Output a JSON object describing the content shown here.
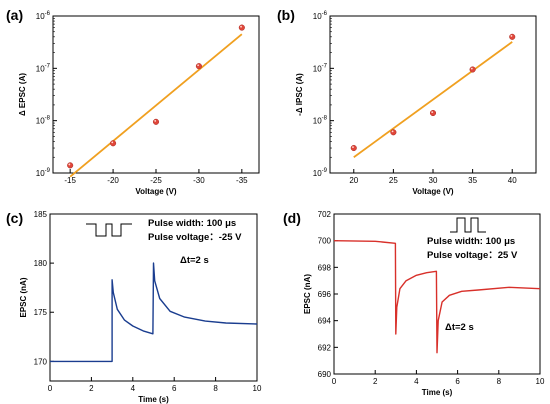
{
  "chart_data": [
    {
      "panel": "(a)",
      "type": "scatter",
      "xlabel": "Voltage (V)",
      "ylabel": "Δ EPSC (A)",
      "y_scale": "log",
      "xlim": [
        -13,
        -37
      ],
      "ylim": [
        1e-09,
        1e-06
      ],
      "x_ticks": [
        -15,
        -20,
        -25,
        -30,
        -35
      ],
      "x_tick_labels": [
        "-15",
        "-20",
        "-25",
        "-30",
        "-35"
      ],
      "y_ticks": [
        1e-09,
        1e-08,
        1e-07,
        1e-06
      ],
      "y_tick_labels": [
        "10-9",
        "10-8",
        "10-7",
        "10-6"
      ],
      "x": [
        -15,
        -20,
        -25,
        -30,
        -35
      ],
      "y": [
        1.4e-09,
        3.7e-09,
        9.5e-09,
        1.1e-07,
        6e-07
      ],
      "fit_line": {
        "x": [
          -15,
          -35
        ],
        "y": [
          8.5e-10,
          4.5e-07
        ]
      },
      "marker_color": "#e0463a",
      "fit_color": "#f0a020"
    },
    {
      "panel": "(b)",
      "type": "scatter",
      "xlabel": "Voltage (V)",
      "ylabel": "-Δ IPSC (A)",
      "y_scale": "log",
      "xlim": [
        17,
        43
      ],
      "ylim": [
        1e-09,
        1e-06
      ],
      "x_ticks": [
        20,
        25,
        30,
        35,
        40
      ],
      "x_tick_labels": [
        "20",
        "25",
        "30",
        "35",
        "40"
      ],
      "y_ticks": [
        1e-09,
        1e-08,
        1e-07,
        1e-06
      ],
      "y_tick_labels": [
        "10-9",
        "10-8",
        "10-7",
        "10-6"
      ],
      "x": [
        20,
        25,
        30,
        35,
        40
      ],
      "y": [
        3e-09,
        6e-09,
        1.4e-08,
        9.5e-08,
        4e-07
      ],
      "fit_line": {
        "x": [
          20,
          40
        ],
        "y": [
          2e-09,
          3.2e-07
        ]
      },
      "marker_color": "#e0463a",
      "fit_color": "#f0a020"
    },
    {
      "panel": "(c)",
      "type": "line",
      "xlabel": "Time (s)",
      "ylabel": "EPSC (nA)",
      "xlim": [
        0,
        10
      ],
      "ylim": [
        168,
        185
      ],
      "x_ticks": [
        0,
        2,
        4,
        6,
        8,
        10
      ],
      "x_tick_labels": [
        "0",
        "2",
        "4",
        "6",
        "8",
        "10"
      ],
      "y_ticks": [
        170,
        175,
        180,
        185
      ],
      "y_tick_labels": [
        "170",
        "175",
        "180",
        "185"
      ],
      "series": [
        {
          "color": "#1a3d8f",
          "x": [
            0,
            3.0,
            3.0,
            3.06,
            3.25,
            3.6,
            4.0,
            4.5,
            4.97,
            5.0,
            5.06,
            5.3,
            5.8,
            6.5,
            7.5,
            8.5,
            10
          ],
          "y": [
            170,
            170,
            178.3,
            177.0,
            175.3,
            174.2,
            173.6,
            173.1,
            172.8,
            180.0,
            178.2,
            176.4,
            175.1,
            174.5,
            174.1,
            173.9,
            173.8
          ]
        }
      ],
      "annotations": [
        "Pulse width: 100 μs",
        "Pulse voltage：-25 V",
        "Δt=2 s"
      ]
    },
    {
      "panel": "(d)",
      "type": "line",
      "xlabel": "Time (s)",
      "ylabel": "EPSC (nA)",
      "xlim": [
        0,
        10
      ],
      "ylim": [
        690,
        702
      ],
      "x_ticks": [
        0,
        2,
        4,
        6,
        8,
        10
      ],
      "x_tick_labels": [
        "0",
        "2",
        "4",
        "6",
        "8",
        "10"
      ],
      "y_ticks": [
        690,
        692,
        694,
        696,
        698,
        700,
        702
      ],
      "y_tick_labels": [
        "690",
        "692",
        "694",
        "696",
        "698",
        "700",
        "702"
      ],
      "series": [
        {
          "color": "#d8302a",
          "x": [
            0,
            2.0,
            2.98,
            3.0,
            3.05,
            3.2,
            3.5,
            4.0,
            4.5,
            4.97,
            5.0,
            5.06,
            5.25,
            5.6,
            6.2,
            7.0,
            8.5,
            10
          ],
          "y": [
            700,
            699.95,
            699.8,
            693.0,
            695.0,
            696.4,
            697.0,
            697.4,
            697.6,
            697.7,
            691.6,
            694.0,
            695.4,
            695.9,
            696.2,
            696.3,
            696.5,
            696.4
          ]
        }
      ],
      "annotations": [
        "Pulse width: 100 μs",
        "Pulse voltage：25 V",
        "Δt=2 s"
      ]
    }
  ]
}
